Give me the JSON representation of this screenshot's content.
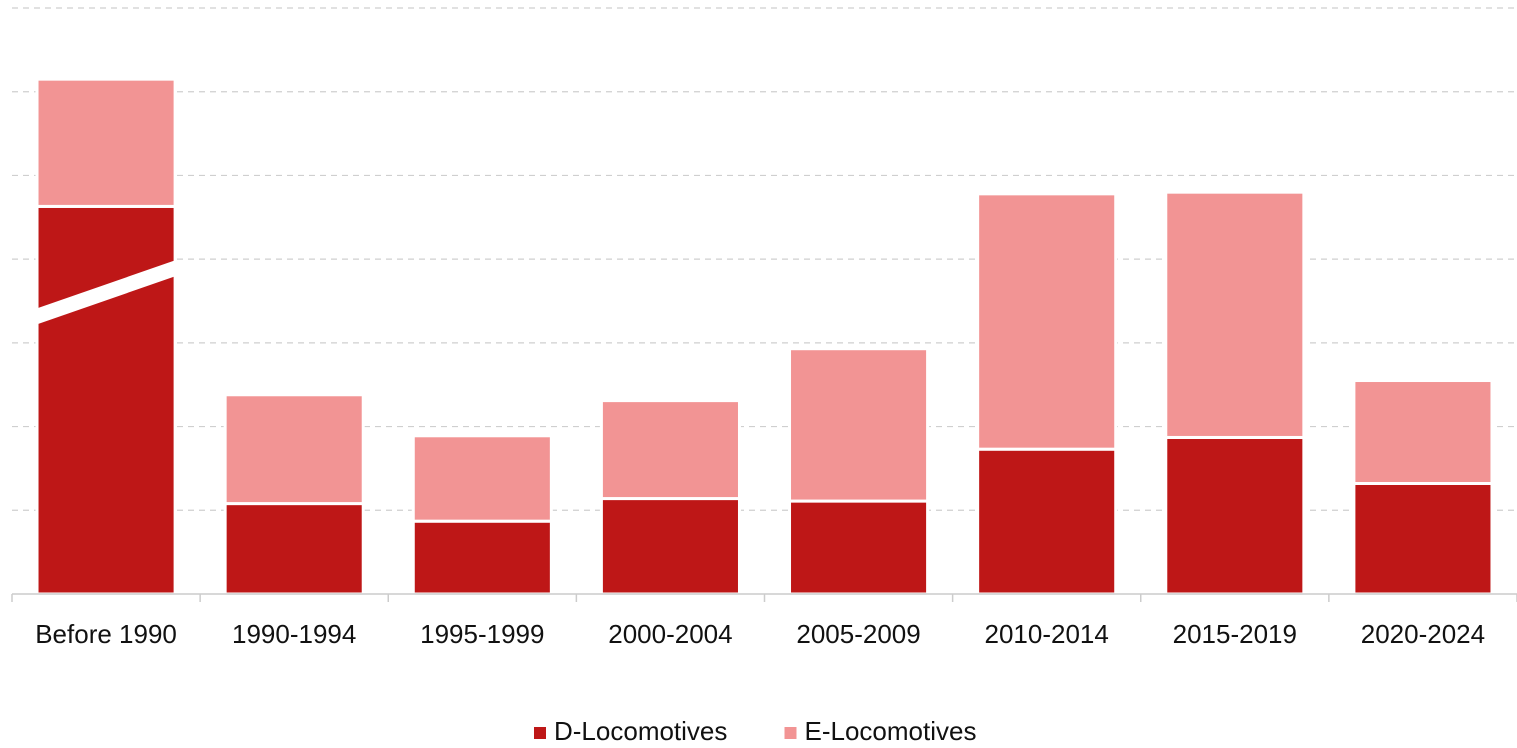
{
  "chart_data": {
    "type": "stacked_bar",
    "categories": [
      "Before 1990",
      "1990-1994",
      "1995-1999",
      "2000-2004",
      "2005-2009",
      "2010-2014",
      "2015-2019",
      "2020-2024"
    ],
    "series": [
      {
        "name": "D-Locomotives",
        "color": "#be1717",
        "values": [
          4.63,
          1.08,
          0.87,
          1.14,
          1.11,
          1.73,
          1.87,
          1.32
        ]
      },
      {
        "name": "E-Locomotives",
        "color": "#f29494",
        "values": [
          1.52,
          1.3,
          1.02,
          1.17,
          1.82,
          3.05,
          2.93,
          1.23
        ]
      }
    ],
    "ylim": [
      0,
      7
    ],
    "yticks": [
      1,
      2,
      3,
      4,
      5,
      6,
      7
    ],
    "grid": true,
    "legend": "bottom"
  }
}
